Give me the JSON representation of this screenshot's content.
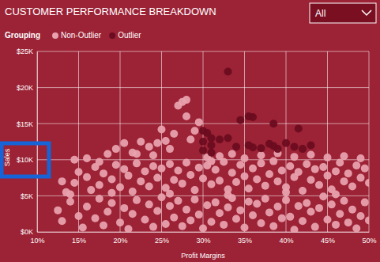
{
  "chart_data": {
    "type": "scatter",
    "title": "CUSTOMER PERFORMANCE BREAKDOWN",
    "x_label": "Profit Margins",
    "y_label": "Sales",
    "legend_title": "Grouping",
    "legend": "top-left",
    "grid": true,
    "marker": "circle",
    "xlim": [
      10,
      50
    ],
    "ylim": [
      0,
      25000
    ],
    "xticks": [
      {
        "value": 10,
        "label": "10%"
      },
      {
        "value": 15,
        "label": "15%"
      },
      {
        "value": 20,
        "label": "20%"
      },
      {
        "value": 25,
        "label": "25%"
      },
      {
        "value": 30,
        "label": "30%"
      },
      {
        "value": 35,
        "label": "35%"
      },
      {
        "value": 40,
        "label": "40%"
      },
      {
        "value": 45,
        "label": "45%"
      },
      {
        "value": 50,
        "label": "50%"
      }
    ],
    "yticks": [
      {
        "value": 0,
        "label": "$0K"
      },
      {
        "value": 5000,
        "label": "$5K"
      },
      {
        "value": 10000,
        "label": "$10K"
      },
      {
        "value": 15000,
        "label": "$15K"
      },
      {
        "value": 20000,
        "label": "$20K"
      },
      {
        "value": 25000,
        "label": "$25K"
      }
    ],
    "series": [
      {
        "name": "Non-Outlier",
        "color": "#e8a1ad",
        "x": [
          14.5,
          16,
          17.5,
          18.5,
          19.5,
          20.5,
          21.5,
          22.5,
          23.5,
          24.5,
          25.5,
          26,
          27,
          27.5,
          28,
          28,
          29,
          29.5,
          26.5,
          25,
          28.5,
          30.5,
          32,
          33.5,
          35,
          37,
          39,
          41,
          43,
          45,
          47,
          49,
          31,
          24,
          22,
          13,
          13.5,
          14.5,
          15,
          16,
          16.5,
          17,
          17.5,
          18,
          19,
          19.5,
          20,
          20.5,
          21,
          21.5,
          22,
          22.5,
          23,
          23.5,
          24,
          24.5,
          25,
          25.5,
          26,
          26.5,
          27,
          27.5,
          28,
          28.5,
          29,
          29.5,
          30,
          30.5,
          31,
          31.5,
          32,
          32.5,
          33,
          33.5,
          34,
          34.5,
          35,
          35.5,
          36,
          36.5,
          37,
          37.5,
          38,
          38.5,
          39,
          39.5,
          40,
          40.5,
          41,
          41.5,
          42,
          42.5,
          43,
          43.5,
          44,
          44.5,
          45,
          45.5,
          46,
          46.5,
          47,
          47.5,
          48,
          48.5,
          49,
          49.5,
          50,
          12.5,
          13,
          14,
          15,
          15.5,
          16,
          17,
          17.5,
          18,
          18.5,
          19,
          20,
          20.5,
          21,
          21.5,
          22,
          23,
          23.5,
          24,
          24.5,
          25,
          25.5,
          26,
          26.5,
          27,
          27.5,
          28,
          28.5,
          29,
          29.5,
          30,
          30.5,
          31,
          31.5,
          32,
          32.5,
          33,
          33.5,
          34,
          34.5,
          35,
          35.5,
          36,
          36.5,
          37,
          37.5,
          38,
          38.5,
          39,
          39.5,
          40,
          40.5,
          41,
          41.5,
          42,
          42.5,
          43,
          43.5,
          44,
          44.5,
          45,
          45.5,
          46,
          46.5,
          47,
          47.5,
          48,
          48.5,
          49,
          49.5,
          50,
          14,
          19,
          26,
          33,
          40,
          46
        ],
        "values": [
          10000,
          10200,
          9700,
          10800,
          11500,
          12300,
          11000,
          12500,
          11800,
          12300,
          12600,
          11500,
          17500,
          18000,
          18300,
          16000,
          14000,
          15200,
          13600,
          14200,
          12800,
          10300,
          10500,
          10800,
          10200,
          10600,
          10900,
          10400,
          10700,
          10300,
          10500,
          10200,
          9800,
          10600,
          10800,
          7000,
          5500,
          6800,
          8300,
          7600,
          5800,
          9000,
          6500,
          8100,
          7300,
          9300,
          6200,
          8700,
          7800,
          5600,
          9500,
          7000,
          8400,
          6300,
          9100,
          7500,
          8800,
          6100,
          9400,
          7200,
          8500,
          6700,
          9600,
          7900,
          5800,
          8900,
          7400,
          9200,
          6600,
          8600,
          7100,
          9700,
          5900,
          8200,
          6900,
          9300,
          7700,
          6000,
          8800,
          7300,
          9500,
          6400,
          8000,
          9800,
          7000,
          8500,
          6200,
          9100,
          7600,
          8300,
          5700,
          9400,
          7200,
          8700,
          6500,
          9000,
          7800,
          5900,
          8400,
          9600,
          7000,
          8100,
          6300,
          9200,
          7500,
          8800,
          6800,
          3000,
          1500,
          4200,
          2200,
          600,
          3500,
          1900,
          4600,
          900,
          2800,
          4000,
          1300,
          3300,
          400,
          2500,
          4400,
          1700,
          3800,
          700,
          2900,
          4800,
          1100,
          3600,
          2000,
          4300,
          800,
          3100,
          1600,
          4500,
          2400,
          500,
          3700,
          1400,
          4100,
          2600,
          1000,
          3400,
          4700,
          1800,
          3000,
          600,
          4200,
          2300,
          3900,
          1200,
          4600,
          2700,
          800,
          3500,
          1900,
          4400,
          2100,
          300,
          3600,
          1500,
          4000,
          2800,
          700,
          3300,
          4900,
          1700,
          3800,
          1000,
          2500,
          4300,
          1300,
          3100,
          500,
          2200,
          4100,
          1600,
          5200,
          5400,
          5300,
          5100,
          5500,
          5200
        ]
      },
      {
        "name": "Outlier",
        "color": "#6b0c20",
        "x": [
          33,
          34.5,
          35.5,
          36,
          38.5,
          41.5,
          30,
          30.5,
          31,
          30,
          31,
          32,
          33,
          34,
          35.5,
          36,
          37,
          38,
          38.5,
          39,
          40,
          41,
          42,
          43,
          30,
          31
        ],
        "values": [
          22200,
          15500,
          16000,
          15900,
          15000,
          14300,
          14000,
          13700,
          13000,
          12500,
          12000,
          12800,
          13000,
          11800,
          12000,
          11700,
          11600,
          12200,
          11900,
          11500,
          12300,
          11800,
          11500,
          12000,
          11300,
          11000
        ]
      }
    ]
  },
  "slicer": {
    "selected": "All"
  }
}
